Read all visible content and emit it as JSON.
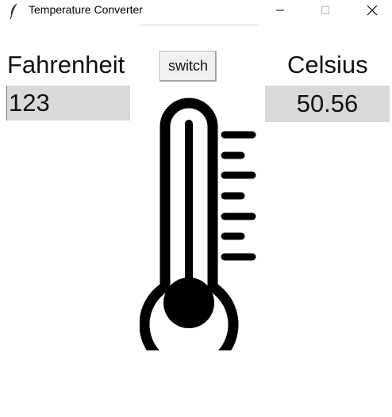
{
  "window": {
    "title": "Temperature Converter",
    "icon": "feather-icon",
    "controls": [
      "minimize-icon",
      "maximize-icon",
      "close-icon"
    ]
  },
  "converter": {
    "from_label": "Fahrenheit",
    "from_value": "123",
    "switch_label": "switch",
    "to_label": "Celsius",
    "to_value": "50.56"
  },
  "graphic": {
    "icon": "thermometer-icon"
  },
  "colors": {
    "field_background": "#d9d9d9",
    "button_background": "#f0f0f0",
    "icon_color": "#000000"
  }
}
